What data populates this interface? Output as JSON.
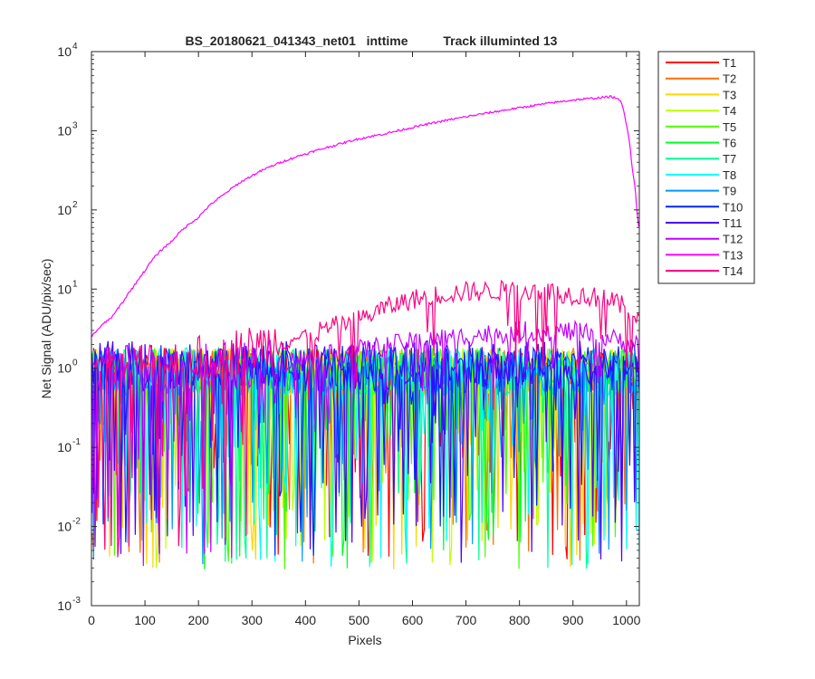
{
  "chart_data": {
    "type": "line",
    "title": "BS_20180621_041343_net01   inttime          Track illuminted 13",
    "xlabel": "Pixels",
    "ylabel": "Net Signal (ADU/pix/sec)",
    "xlim": [
      0,
      1024
    ],
    "ylim": [
      0.001,
      10000
    ],
    "yscale": "log",
    "x_ticks": [
      "0",
      "100",
      "200",
      "300",
      "400",
      "500",
      "600",
      "700",
      "800",
      "900",
      "1000"
    ],
    "y_ticks": [
      {
        "base": "10",
        "exp": "-3"
      },
      {
        "base": "10",
        "exp": "-2"
      },
      {
        "base": "10",
        "exp": "-1"
      },
      {
        "base": "10",
        "exp": "0"
      },
      {
        "base": "10",
        "exp": "1"
      },
      {
        "base": "10",
        "exp": "2"
      },
      {
        "base": "10",
        "exp": "3"
      },
      {
        "base": "10",
        "exp": "4"
      }
    ],
    "grid": false,
    "legend_position": "outside-right",
    "series": [
      {
        "name": "T1",
        "color": "#ff0000",
        "profile": "noise",
        "level": 0.9
      },
      {
        "name": "T2",
        "color": "#ff6f00",
        "profile": "noise",
        "level": 0.9
      },
      {
        "name": "T3",
        "color": "#ffd500",
        "profile": "noise",
        "level": 0.9
      },
      {
        "name": "T4",
        "color": "#c0ff00",
        "profile": "noise",
        "level": 0.9
      },
      {
        "name": "T5",
        "color": "#4cff00",
        "profile": "noise",
        "level": 0.9
      },
      {
        "name": "T6",
        "color": "#00ff26",
        "profile": "noise",
        "level": 0.9
      },
      {
        "name": "T7",
        "color": "#00ff99",
        "profile": "noise",
        "level": 0.9
      },
      {
        "name": "T8",
        "color": "#00ffff",
        "profile": "noise",
        "level": 0.9
      },
      {
        "name": "T9",
        "color": "#0099ff",
        "profile": "noise",
        "level": 0.9
      },
      {
        "name": "T10",
        "color": "#0026ff",
        "profile": "noise",
        "level": 1.0
      },
      {
        "name": "T11",
        "color": "#4c00ff",
        "profile": "noise",
        "level": 1.1
      },
      {
        "name": "T12",
        "color": "#c000ff",
        "profile": "hump",
        "level": 1.2,
        "key_x": [
          0,
          200,
          400,
          600,
          700,
          800,
          900,
          1000,
          1024
        ],
        "key_y": [
          1.0,
          1.0,
          1.3,
          2.2,
          2.6,
          3.0,
          3.0,
          2.2,
          2.0
        ]
      },
      {
        "name": "T13",
        "color": "#ff00ff",
        "profile": "curve",
        "x": [
          0,
          10,
          20,
          40,
          60,
          80,
          100,
          150,
          200,
          250,
          300,
          350,
          400,
          450,
          500,
          550,
          600,
          650,
          700,
          750,
          800,
          850,
          900,
          940,
          960,
          970,
          980,
          990,
          1000,
          1010,
          1020,
          1024
        ],
        "y": [
          2.5,
          3,
          3.5,
          4.5,
          7,
          11,
          17,
          40,
          80,
          160,
          270,
          390,
          510,
          640,
          790,
          920,
          1100,
          1300,
          1500,
          1720,
          1950,
          2200,
          2450,
          2580,
          2650,
          2700,
          2600,
          2300,
          1200,
          350,
          85,
          55
        ]
      },
      {
        "name": "T14",
        "color": "#ff0080",
        "profile": "hump",
        "level": 1.5,
        "key_x": [
          0,
          100,
          200,
          300,
          400,
          500,
          550,
          600,
          650,
          700,
          750,
          800,
          850,
          900,
          950,
          1000,
          1024
        ],
        "key_y": [
          1.0,
          1.1,
          1.3,
          1.8,
          2.6,
          4.2,
          6.0,
          7.6,
          8.8,
          9.5,
          9.8,
          9.9,
          9.6,
          8.8,
          8.0,
          6.0,
          4.0
        ]
      }
    ]
  }
}
